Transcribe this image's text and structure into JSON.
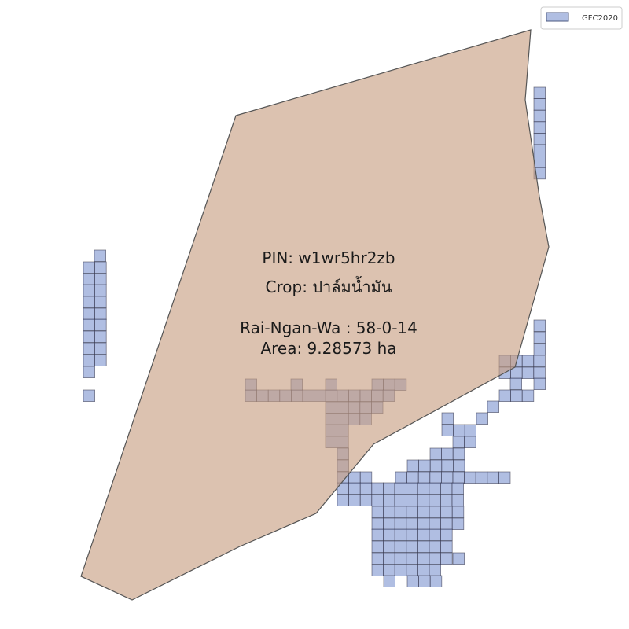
{
  "legend": {
    "label": "GFC2020",
    "swatch_fill": "#8fa3d6",
    "swatch_stroke": "#4c5a80"
  },
  "parcel": {
    "pin": "PIN: w1wr5hr2zb",
    "crop": "Crop: ปาล์มน้ำมัน",
    "rai_ngan_wa": "Rai-Ngan-Wa : 58-0-14",
    "area": "Area: 9.28573 ha",
    "fill": "#c69c80",
    "stroke": "#555555"
  },
  "forest_cells": {
    "fill": "#8fa3d6",
    "stroke": "#2a2a40"
  }
}
